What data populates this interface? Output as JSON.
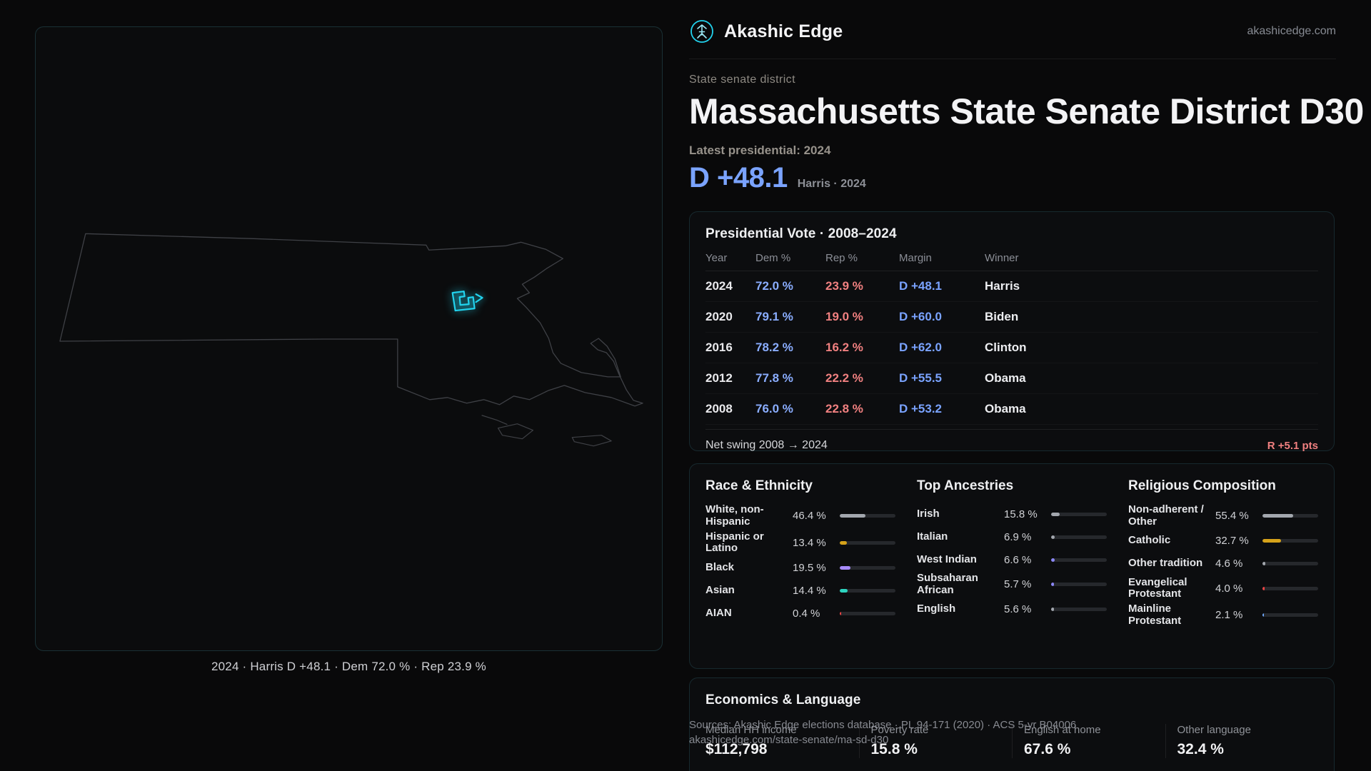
{
  "brand": {
    "name": "Akashic Edge",
    "domain": "akashicedge.com"
  },
  "page": {
    "kicker": "State senate district",
    "title": "Massachusetts State Senate District D30",
    "latest_label": "Latest presidential: 2024",
    "headline_margin": "D +48.1",
    "headline_note": "Harris · 2024"
  },
  "map": {
    "caption": "2024 · Harris D +48.1 · Dem 72.0 % · Rep 23.9 %",
    "accent_color": "#22d3ee"
  },
  "presidential": {
    "title": "Presidential Vote · 2008–2024",
    "columns": [
      "Year",
      "Dem %",
      "Rep %",
      "Margin",
      "Winner"
    ],
    "rows": [
      {
        "year": "2024",
        "dem": "72.0 %",
        "rep": "23.9 %",
        "margin": "D +48.1",
        "winner": "Harris"
      },
      {
        "year": "2020",
        "dem": "79.1 %",
        "rep": "19.0 %",
        "margin": "D +60.0",
        "winner": "Biden"
      },
      {
        "year": "2016",
        "dem": "78.2 %",
        "rep": "16.2 %",
        "margin": "D +62.0",
        "winner": "Clinton"
      },
      {
        "year": "2012",
        "dem": "77.8 %",
        "rep": "22.2 %",
        "margin": "D +55.5",
        "winner": "Obama"
      },
      {
        "year": "2008",
        "dem": "76.0 %",
        "rep": "22.8 %",
        "margin": "D +53.2",
        "winner": "Obama"
      }
    ],
    "net_swing_label": "Net swing 2008 → 2024",
    "net_swing_value": "R +5.1 pts",
    "dem_color": "#8aadff",
    "rep_color": "#f08080"
  },
  "demographics": {
    "race": {
      "title": "Race & Ethnicity",
      "rows": [
        {
          "label": "White, non-Hispanic",
          "value": "46.4 %",
          "pct": 46.4,
          "color": "#a3a7ae"
        },
        {
          "label": "Hispanic or Latino",
          "value": "13.4 %",
          "pct": 13.4,
          "color": "#d6a21a"
        },
        {
          "label": "Black",
          "value": "19.5 %",
          "pct": 19.5,
          "color": "#a78bfa"
        },
        {
          "label": "Asian",
          "value": "14.4 %",
          "pct": 14.4,
          "color": "#2dd4bf"
        },
        {
          "label": "AIAN",
          "value": "0.4 %",
          "pct": 0.4,
          "color": "#ef4444"
        }
      ]
    },
    "ancestries": {
      "title": "Top Ancestries",
      "rows": [
        {
          "label": "Irish",
          "value": "15.8 %",
          "pct": 15.8,
          "color": "#a3a7ae"
        },
        {
          "label": "Italian",
          "value": "6.9 %",
          "pct": 6.9,
          "color": "#a3a7ae"
        },
        {
          "label": "West Indian",
          "value": "6.6 %",
          "pct": 6.6,
          "color": "#8b87f7"
        },
        {
          "label": "Subsaharan African",
          "value": "5.7 %",
          "pct": 5.7,
          "color": "#8b87f7"
        },
        {
          "label": "English",
          "value": "5.6 %",
          "pct": 5.6,
          "color": "#a3a7ae"
        }
      ]
    },
    "religion": {
      "title": "Religious Composition",
      "rows": [
        {
          "label": "Non-adherent / Other",
          "value": "55.4 %",
          "pct": 55.4,
          "color": "#a3a7ae"
        },
        {
          "label": "Catholic",
          "value": "32.7 %",
          "pct": 32.7,
          "color": "#d6a21a"
        },
        {
          "label": "Other tradition",
          "value": "4.6 %",
          "pct": 4.6,
          "color": "#a3a7ae"
        },
        {
          "label": "Evangelical Protestant",
          "value": "4.0 %",
          "pct": 4.0,
          "color": "#ef4444"
        },
        {
          "label": "Mainline Protestant",
          "value": "2.1 %",
          "pct": 2.1,
          "color": "#6ea8fe"
        }
      ]
    }
  },
  "economics": {
    "title": "Economics & Language",
    "stats": [
      {
        "label": "Median HH income",
        "value": "$112,798"
      },
      {
        "label": "Poverty rate",
        "value": "15.8 %"
      },
      {
        "label": "English at home",
        "value": "67.6 %"
      },
      {
        "label": "Other language",
        "value": "32.4 %"
      }
    ]
  },
  "footer": {
    "line1": "Sources: Akashic Edge elections database · PL 94-171 (2020) · ACS 5-yr B04006",
    "line2": "akashicedge.com/state-senate/ma-sd-d30"
  }
}
